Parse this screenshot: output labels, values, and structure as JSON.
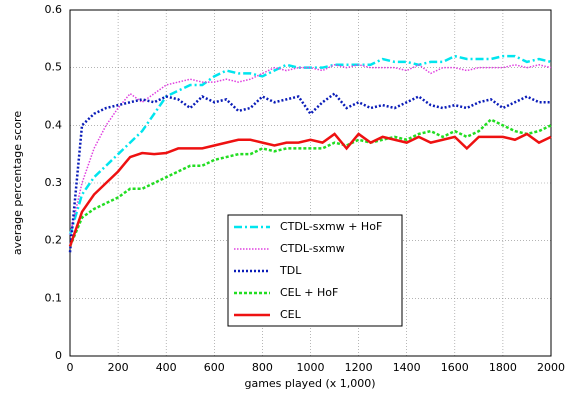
{
  "chart_data": {
    "type": "line",
    "xlabel": "games played (x 1,000)",
    "ylabel": "average percentage score",
    "x": [
      0,
      50,
      100,
      150,
      200,
      250,
      300,
      350,
      400,
      450,
      500,
      550,
      600,
      650,
      700,
      750,
      800,
      850,
      900,
      950,
      1000,
      1050,
      1100,
      1150,
      1200,
      1250,
      1300,
      1350,
      1400,
      1450,
      1500,
      1550,
      1600,
      1650,
      1700,
      1750,
      1800,
      1850,
      1900,
      1950,
      2000
    ],
    "xlim": [
      0,
      2000
    ],
    "xticks": [
      0,
      200,
      400,
      600,
      800,
      1000,
      1200,
      1400,
      1600,
      1800,
      2000
    ],
    "ylim": [
      0,
      0.6
    ],
    "yticks": [
      0,
      0.1,
      0.2,
      0.3,
      0.4,
      0.5,
      0.6
    ],
    "grid": true,
    "legend": "center",
    "series": [
      {
        "name": "CTDL-sxmw + HoF",
        "color": "#00e5ee",
        "values": [
          0.21,
          0.28,
          0.31,
          0.33,
          0.35,
          0.37,
          0.39,
          0.42,
          0.45,
          0.46,
          0.47,
          0.47,
          0.485,
          0.495,
          0.49,
          0.49,
          0.485,
          0.495,
          0.505,
          0.5,
          0.5,
          0.5,
          0.505,
          0.505,
          0.505,
          0.505,
          0.515,
          0.51,
          0.51,
          0.505,
          0.51,
          0.51,
          0.52,
          0.515,
          0.515,
          0.515,
          0.52,
          0.52,
          0.51,
          0.515,
          0.51
        ]
      },
      {
        "name": "CTDL-sxmw",
        "color": "#e040e0",
        "values": [
          0.21,
          0.3,
          0.36,
          0.4,
          0.43,
          0.455,
          0.44,
          0.455,
          0.47,
          0.475,
          0.48,
          0.475,
          0.475,
          0.48,
          0.475,
          0.48,
          0.49,
          0.5,
          0.495,
          0.5,
          0.5,
          0.495,
          0.505,
          0.5,
          0.505,
          0.5,
          0.5,
          0.5,
          0.495,
          0.505,
          0.49,
          0.5,
          0.5,
          0.495,
          0.5,
          0.5,
          0.5,
          0.505,
          0.5,
          0.505,
          0.5
        ]
      },
      {
        "name": "TDL",
        "color": "#0a1cb8",
        "values": [
          0.18,
          0.4,
          0.42,
          0.43,
          0.435,
          0.44,
          0.445,
          0.44,
          0.45,
          0.445,
          0.43,
          0.45,
          0.44,
          0.445,
          0.425,
          0.43,
          0.45,
          0.44,
          0.445,
          0.45,
          0.42,
          0.44,
          0.455,
          0.43,
          0.44,
          0.43,
          0.435,
          0.43,
          0.44,
          0.45,
          0.435,
          0.43,
          0.435,
          0.43,
          0.44,
          0.445,
          0.43,
          0.44,
          0.45,
          0.44,
          0.44
        ]
      },
      {
        "name": "CEL + HoF",
        "color": "#22dd22",
        "values": [
          0.19,
          0.24,
          0.255,
          0.265,
          0.275,
          0.29,
          0.29,
          0.3,
          0.31,
          0.32,
          0.33,
          0.33,
          0.34,
          0.345,
          0.35,
          0.35,
          0.36,
          0.355,
          0.36,
          0.36,
          0.36,
          0.36,
          0.37,
          0.365,
          0.375,
          0.37,
          0.375,
          0.38,
          0.375,
          0.385,
          0.39,
          0.38,
          0.39,
          0.38,
          0.39,
          0.41,
          0.4,
          0.39,
          0.385,
          0.39,
          0.4
        ]
      },
      {
        "name": "CEL",
        "color": "#ee1111",
        "values": [
          0.19,
          0.25,
          0.28,
          0.3,
          0.32,
          0.345,
          0.352,
          0.35,
          0.352,
          0.36,
          0.36,
          0.36,
          0.365,
          0.37,
          0.375,
          0.375,
          0.37,
          0.365,
          0.37,
          0.37,
          0.375,
          0.37,
          0.385,
          0.36,
          0.385,
          0.37,
          0.38,
          0.375,
          0.37,
          0.38,
          0.37,
          0.375,
          0.38,
          0.36,
          0.38,
          0.38,
          0.38,
          0.375,
          0.385,
          0.37,
          0.38
        ]
      }
    ]
  }
}
